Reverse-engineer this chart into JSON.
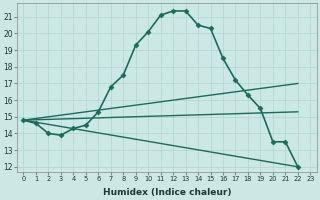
{
  "xlabel": "Humidex (Indice chaleur)",
  "bg_color": "#cce8e4",
  "grid_color": "#b0d4cc",
  "line_color": "#1a6b5a",
  "xlim_min": -0.5,
  "xlim_max": 23.5,
  "ylim_min": 11.7,
  "ylim_max": 21.8,
  "yticks": [
    12,
    13,
    14,
    15,
    16,
    17,
    18,
    19,
    20,
    21
  ],
  "xticks": [
    0,
    1,
    2,
    3,
    4,
    5,
    6,
    7,
    8,
    9,
    10,
    11,
    12,
    13,
    14,
    15,
    16,
    17,
    18,
    19,
    20,
    21,
    22,
    23
  ],
  "series": [
    {
      "x": [
        0,
        1,
        2,
        3,
        4,
        5,
        6,
        7,
        8,
        9,
        10,
        11,
        12,
        13,
        14,
        15,
        16,
        17,
        18,
        19,
        20,
        21,
        22
      ],
      "y": [
        14.8,
        14.6,
        14.0,
        13.9,
        14.3,
        14.5,
        15.3,
        16.8,
        17.5,
        19.3,
        20.1,
        21.1,
        21.35,
        21.35,
        20.5,
        20.3,
        18.5,
        17.2,
        16.3,
        15.5,
        13.5,
        13.5,
        12.0
      ],
      "marker": "D",
      "markersize": 2.5,
      "linewidth": 1.2
    },
    {
      "x": [
        0,
        22
      ],
      "y": [
        14.8,
        17.0
      ],
      "marker": null,
      "markersize": 0,
      "linewidth": 1.0
    },
    {
      "x": [
        0,
        22
      ],
      "y": [
        14.8,
        15.3
      ],
      "marker": null,
      "markersize": 0,
      "linewidth": 1.0
    },
    {
      "x": [
        0,
        22
      ],
      "y": [
        14.8,
        12.0
      ],
      "marker": null,
      "markersize": 0,
      "linewidth": 1.0
    }
  ]
}
